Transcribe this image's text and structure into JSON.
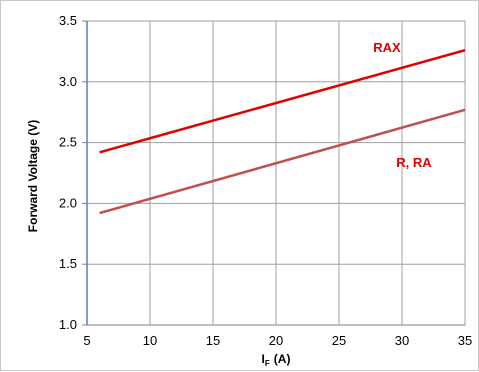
{
  "chart_data": {
    "type": "line",
    "title": "",
    "xlabel": "I",
    "xlabel_sub": "F",
    "xlabel_unit": "(A)",
    "ylabel": "Forward Voltage (V)",
    "xlim": [
      5,
      35
    ],
    "ylim": [
      1.0,
      3.5
    ],
    "xticks": [
      5,
      10,
      15,
      20,
      25,
      30,
      35
    ],
    "yticks": [
      1.0,
      1.5,
      2.0,
      2.5,
      3.0,
      3.5
    ],
    "ytick_labels": [
      "1.0",
      "1.5",
      "2.0",
      "2.5",
      "3.0",
      "3.5"
    ],
    "grid": true,
    "series": [
      {
        "name": "RAX",
        "color": "#e00000",
        "x": [
          6,
          35
        ],
        "y": [
          2.42,
          3.26
        ]
      },
      {
        "name": "R, RA",
        "color": "#c0504d",
        "x": [
          6,
          35
        ],
        "y": [
          1.92,
          2.77
        ]
      }
    ],
    "annotations": [
      {
        "text": "RAX",
        "series": 0,
        "color": "#e00000"
      },
      {
        "text": "R, RA",
        "series": 1,
        "color": "#e00000"
      }
    ]
  }
}
